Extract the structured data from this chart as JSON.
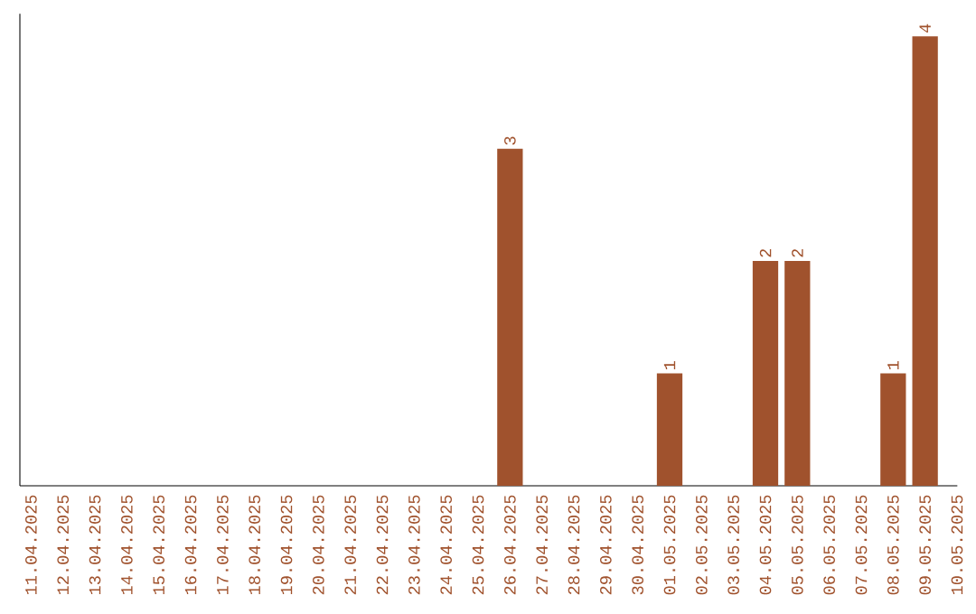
{
  "chart_data": {
    "type": "bar",
    "categories": [
      "11.04.2025",
      "12.04.2025",
      "13.04.2025",
      "14.04.2025",
      "15.04.2025",
      "16.04.2025",
      "17.04.2025",
      "18.04.2025",
      "19.04.2025",
      "20.04.2025",
      "21.04.2025",
      "22.04.2025",
      "23.04.2025",
      "24.04.2025",
      "25.04.2025",
      "26.04.2025",
      "27.04.2025",
      "28.04.2025",
      "29.04.2025",
      "30.04.2025",
      "01.05.2025",
      "02.05.2025",
      "03.05.2025",
      "04.05.2025",
      "05.05.2025",
      "06.05.2025",
      "07.05.2025",
      "08.05.2025",
      "09.05.2025",
      "10.05.2025"
    ],
    "values": [
      null,
      null,
      null,
      null,
      null,
      null,
      null,
      null,
      null,
      null,
      null,
      null,
      null,
      null,
      null,
      3,
      null,
      null,
      null,
      null,
      1,
      null,
      null,
      2,
      2,
      null,
      null,
      1,
      4,
      null
    ],
    "value_labels": [
      null,
      null,
      null,
      null,
      null,
      null,
      null,
      null,
      null,
      null,
      null,
      null,
      null,
      null,
      null,
      "3",
      null,
      null,
      null,
      null,
      "1",
      null,
      null,
      "2",
      "2",
      null,
      null,
      "1",
      "4",
      null
    ],
    "color": "#a0522d",
    "tick_labels": "x",
    "grid": false
  }
}
